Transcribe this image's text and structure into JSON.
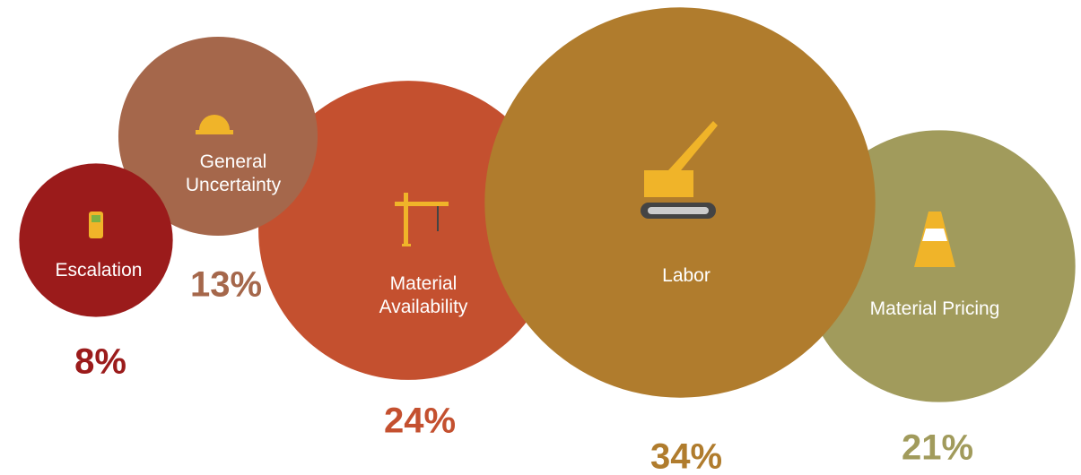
{
  "chart_data": {
    "type": "bubble",
    "categories": [
      "Escalation",
      "General Uncertainty",
      "Material Availability",
      "Labor",
      "Material Pricing"
    ],
    "values": [
      8,
      13,
      24,
      34,
      21
    ],
    "value_labels": [
      "8%",
      "13%",
      "24%",
      "34%",
      "21%"
    ],
    "colors": [
      "#9b1b1b",
      "#a5674b",
      "#c4502f",
      "#b07c2d",
      "#a19b5c"
    ]
  }
}
